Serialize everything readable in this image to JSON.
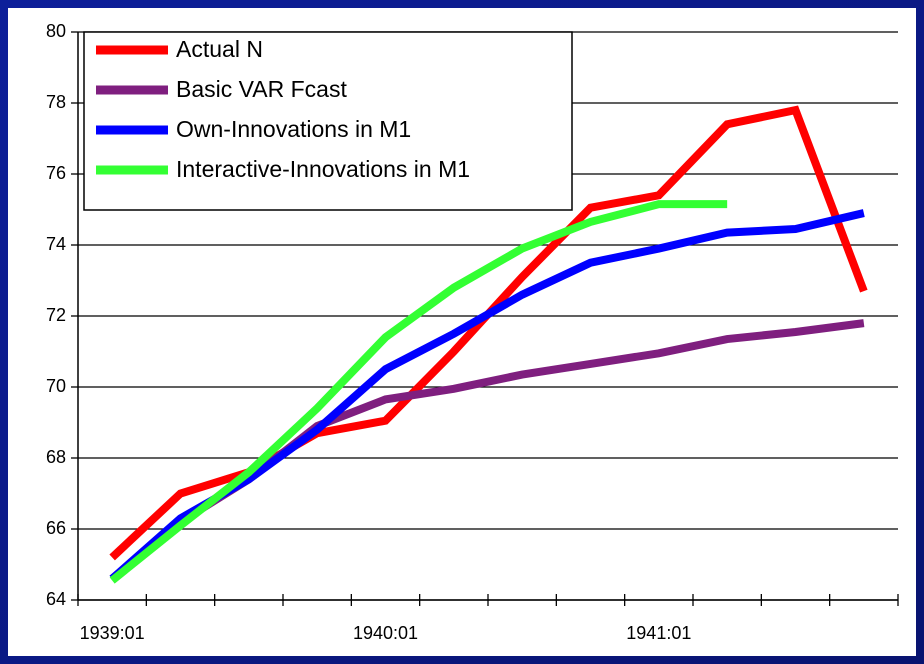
{
  "chart_data": {
    "type": "line",
    "categories": [
      "1939:01",
      null,
      null,
      null,
      "1940:01",
      null,
      null,
      null,
      "1941:01",
      null,
      null,
      null
    ],
    "series": [
      {
        "name": "Actual N",
        "color": "#ff0000",
        "values": [
          65.2,
          67.0,
          67.6,
          68.7,
          69.05,
          71.0,
          73.1,
          75.05,
          75.4,
          77.4,
          77.8,
          72.7
        ]
      },
      {
        "name": "Basic VAR Fcast",
        "color": "#7f1f7f",
        "values": [
          64.6,
          66.2,
          67.4,
          68.9,
          69.65,
          69.95,
          70.35,
          70.65,
          70.95,
          71.35,
          71.55,
          71.8
        ]
      },
      {
        "name": "Own-Innovations in M1",
        "color": "#0000ff",
        "values": [
          64.6,
          66.3,
          67.4,
          68.8,
          70.5,
          71.5,
          72.6,
          73.5,
          73.9,
          74.35,
          74.45,
          74.9
        ]
      },
      {
        "name": "Interactive-Innovations in M1",
        "color": "#33ff33",
        "values": [
          64.55,
          66.1,
          67.6,
          69.4,
          71.4,
          72.8,
          73.9,
          74.65,
          75.15,
          75.15,
          null,
          null
        ]
      }
    ],
    "ylim": [
      64,
      80
    ],
    "yticks": [
      64,
      66,
      68,
      70,
      72,
      74,
      76,
      78,
      80
    ],
    "grid": true
  }
}
